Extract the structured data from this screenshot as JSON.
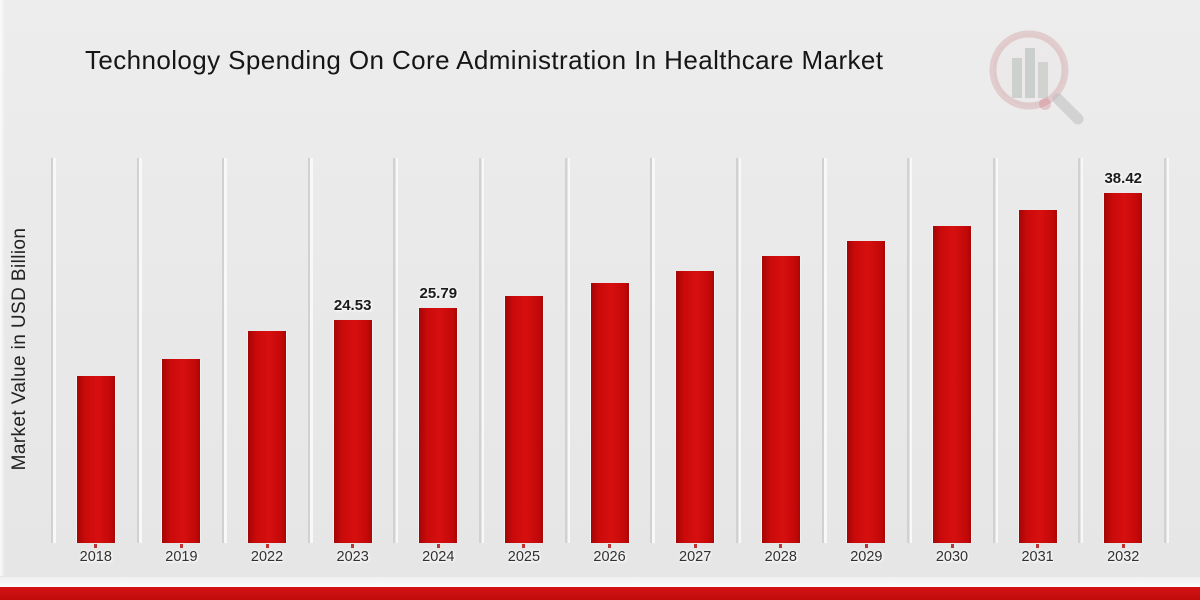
{
  "title": "Technology Spending On Core Administration In Healthcare Market",
  "watermark_icon": "magnifier-bar-chart-logo",
  "colors": {
    "bar": "#cc0b0b",
    "footer_banner": "#c60d0e",
    "background": "#e9e9e9",
    "grid_dark": "#d1d1d1",
    "grid_light": "#f8f8f8",
    "title_text": "#161616",
    "axis_text": "#313131"
  },
  "chart_data": {
    "type": "bar",
    "title": "Technology Spending On Core Administration In Healthcare Market",
    "xlabel": "",
    "ylabel": "Market Value in USD Billion",
    "categories": [
      "2018",
      "2019",
      "2022",
      "2023",
      "2024",
      "2025",
      "2026",
      "2027",
      "2028",
      "2029",
      "2030",
      "2031",
      "2032"
    ],
    "values": [
      18.3,
      20.2,
      23.3,
      24.53,
      25.79,
      27.1,
      28.5,
      29.9,
      31.5,
      33.1,
      34.8,
      36.6,
      38.42
    ],
    "data_labels": {
      "2023": "24.53",
      "2024": "25.79",
      "2032": "38.42"
    },
    "ylim": [
      0,
      42.6
    ],
    "grid": "vertical category separators",
    "legend": "none",
    "bar_color": "#cc0b0b"
  }
}
